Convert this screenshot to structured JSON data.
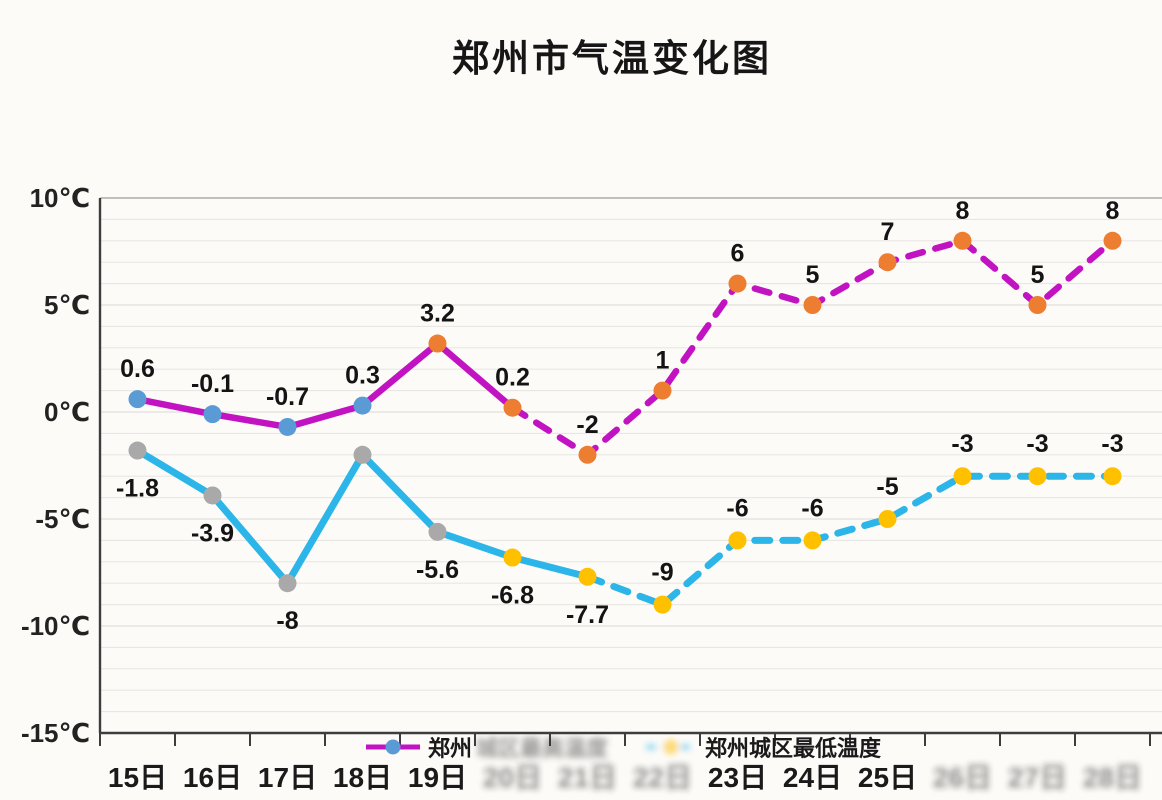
{
  "title": "郑州市气温变化图",
  "colors": {
    "high_line": "#C213C2",
    "low_line": "#2BB5E8",
    "marker_blue": "#5B9BD5",
    "marker_orange": "#ED7D31",
    "marker_gray": "#A9A9A9",
    "marker_yellow": "#FFC000",
    "grid_minor": "#E8E7E4",
    "grid_major": "#DAD9D6",
    "grid_top": "#ACACAC",
    "axis": "#3D3D3D",
    "text": "#161616"
  },
  "y_axis": {
    "ticks": [
      {
        "label": "10℃",
        "value": 10
      },
      {
        "label": "5℃",
        "value": 5
      },
      {
        "label": "0℃",
        "value": 0
      },
      {
        "label": "-5℃",
        "value": -5
      },
      {
        "label": "-10℃",
        "value": -10
      },
      {
        "label": "-15℃",
        "value": -15
      }
    ],
    "min": -15,
    "max": 10,
    "minor_step": 1
  },
  "x_axis": {
    "categories": [
      {
        "label": "15日",
        "blurred": false
      },
      {
        "label": "16日",
        "blurred": false
      },
      {
        "label": "17日",
        "blurred": false
      },
      {
        "label": "18日",
        "blurred": false
      },
      {
        "label": "19日",
        "blurred": false
      },
      {
        "label": "20日",
        "blurred": true
      },
      {
        "label": "21日",
        "blurred": true
      },
      {
        "label": "22日",
        "blurred": true
      },
      {
        "label": "23日",
        "blurred": false
      },
      {
        "label": "24日",
        "blurred": false
      },
      {
        "label": "25日",
        "blurred": false
      },
      {
        "label": "26日",
        "blurred": true
      },
      {
        "label": "27日",
        "blurred": true
      },
      {
        "label": "28日",
        "blurred": true
      }
    ]
  },
  "chart_data": {
    "type": "line",
    "title": "郑州市气温变化图",
    "categories": [
      "15日",
      "16日",
      "17日",
      "18日",
      "19日",
      "20日",
      "21日",
      "22日",
      "23日",
      "24日",
      "25日",
      "26日",
      "27日",
      "28日"
    ],
    "ylim": [
      -15,
      10
    ],
    "grid": true,
    "legend_position": "bottom",
    "series": [
      {
        "name": "郑州城区最高温度",
        "line_color": "#C213C2",
        "values": [
          0.6,
          -0.1,
          -0.7,
          0.3,
          3.2,
          0.2,
          -2,
          1,
          6,
          5,
          7,
          8,
          5,
          8
        ],
        "labels": [
          "0.6",
          "-0.1",
          "-0.7",
          "0.3",
          "3.2",
          "0.2",
          "-2",
          "1",
          "6",
          "5",
          "7",
          "8",
          "5",
          "8"
        ],
        "label_positions": [
          "above",
          "above",
          "above",
          "above",
          "above",
          "above",
          "above",
          "above",
          "above",
          "above",
          "above",
          "above",
          "above",
          "above"
        ],
        "solid_until_index": 5,
        "marker": {
          "first_color": "#5B9BD5",
          "rest_color": "#ED7D31",
          "first_count": 4
        }
      },
      {
        "name": "郑州城区最低温度",
        "line_color": "#2BB5E8",
        "values": [
          -1.8,
          -3.9,
          -8,
          -2,
          -5.6,
          -6.8,
          -7.7,
          -9,
          -6,
          -6,
          -5,
          -3,
          -3,
          -3
        ],
        "labels": [
          "-1.8",
          "-3.9",
          "-8",
          "",
          "-5.6",
          "-6.8",
          "-7.7",
          "-9",
          "-6",
          "-6",
          "-5",
          "-3",
          "-3",
          "-3"
        ],
        "label_positions": [
          "below",
          "below",
          "below",
          "none",
          "below",
          "below",
          "below",
          "above",
          "above",
          "above",
          "above",
          "above",
          "above",
          "above"
        ],
        "solid_until_index": 6,
        "marker": {
          "first_color": "#A9A9A9",
          "rest_color": "#FFC000",
          "first_count": 5
        }
      }
    ]
  },
  "legend": {
    "items": [
      {
        "label": "郑州城区最高温度",
        "clear_prefix": "郑州",
        "blurred_suffix": "城区最高温度",
        "swatch_blurred": false
      },
      {
        "label": "郑州城区最低温度",
        "clear_prefix": "郑州城区最低温度",
        "blurred_suffix": "",
        "swatch_blurred": true
      }
    ]
  }
}
